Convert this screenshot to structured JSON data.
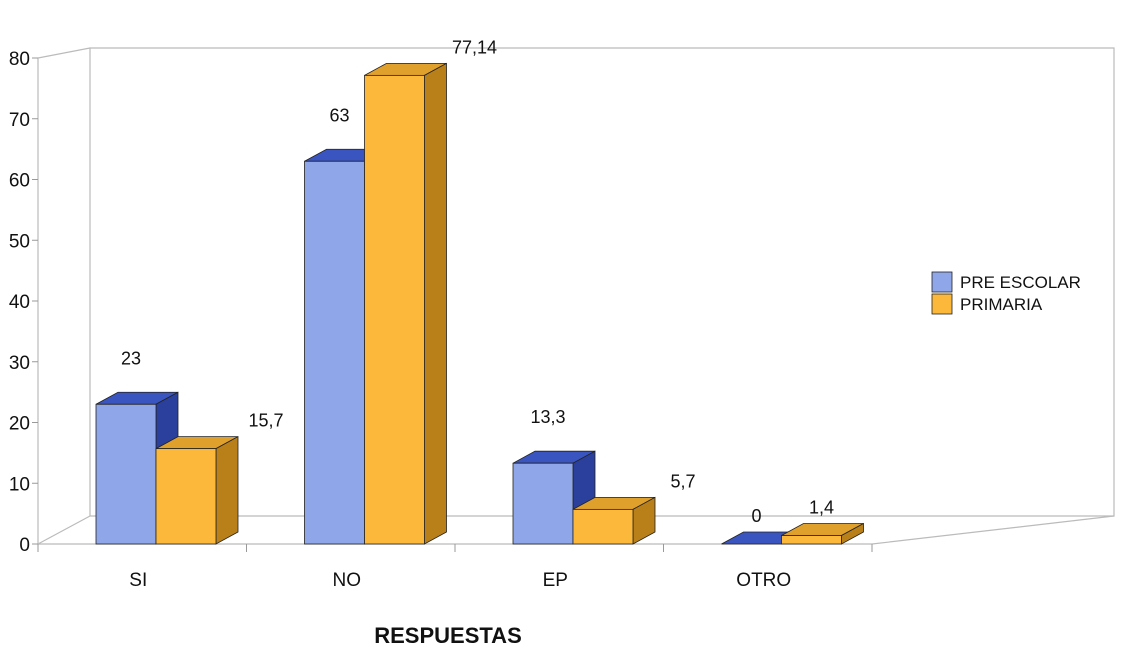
{
  "chart_data": {
    "type": "bar",
    "categories": [
      "SI",
      "NO",
      "EP",
      "OTRO"
    ],
    "series": [
      {
        "name": "PRE ESCOLAR",
        "values": [
          23,
          63,
          13.3,
          0
        ],
        "labels": [
          "23",
          "63",
          "13,3",
          "0"
        ],
        "color": "#8fa6e8",
        "side_color": "#2b3f9c",
        "top_color": "#3a55c0"
      },
      {
        "name": "PRIMARIA",
        "values": [
          15.7,
          77.14,
          5.7,
          1.4
        ],
        "labels": [
          "15,7",
          "77,14",
          "5,7",
          "1,4"
        ],
        "color": "#fcb83a",
        "side_color": "#b9801a",
        "top_color": "#e0a02c"
      }
    ],
    "title": "",
    "xlabel": "RESPUESTAS",
    "ylabel": "",
    "ylim": [
      0,
      80
    ],
    "yticks": [
      0,
      10,
      20,
      30,
      40,
      50,
      60,
      70,
      80
    ],
    "grid": false,
    "legend": "right"
  }
}
